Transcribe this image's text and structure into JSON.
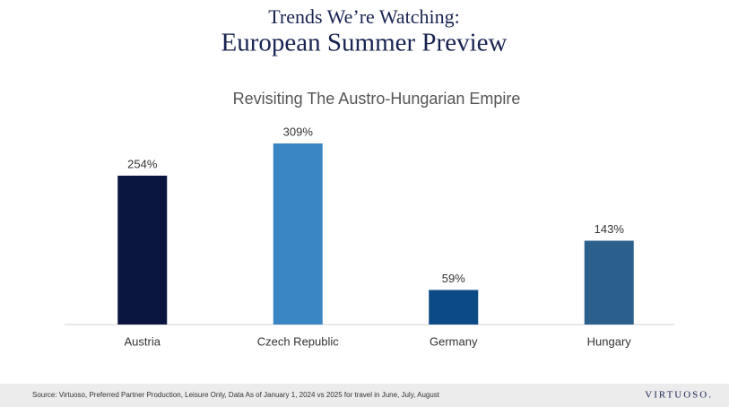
{
  "header": {
    "kicker": "Trends We’re Watching:",
    "title": "European Summer Preview"
  },
  "chart_data": {
    "type": "bar",
    "title": "Revisiting The Austro-Hungarian Empire",
    "categories": [
      "Austria",
      "Czech Republic",
      "Germany",
      "Hungary"
    ],
    "values": [
      254,
      309,
      59,
      143
    ],
    "value_labels": [
      "254%",
      "309%",
      "59%",
      "143%"
    ],
    "colors": [
      "#0b1640",
      "#3a86c4",
      "#0b4a85",
      "#2b5f8c"
    ]
  },
  "footer": {
    "source": "Source: Virtuoso, Preferred Partner Production, Leisure Only, Data As of January 1, 2024 vs 2025 for travel in June, July, August",
    "logo": "VIRTUOSO."
  }
}
